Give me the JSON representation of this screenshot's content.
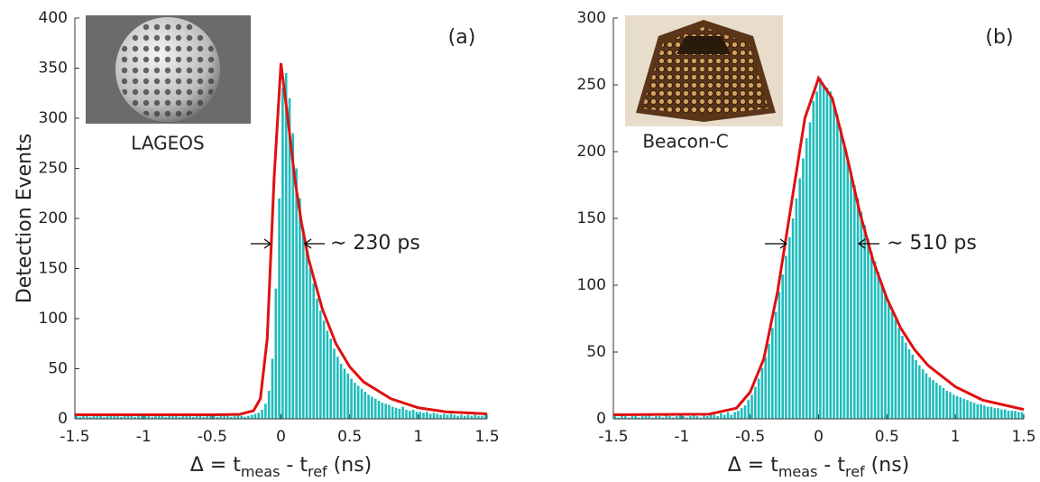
{
  "chart_data": [
    {
      "type": "histogram",
      "tag": "(a)",
      "image_caption": "LAGEOS",
      "annotation": "∼ 230 ps",
      "ylabel": "Detection Events",
      "xlabel": [
        "Δ = t",
        "meas",
        " - t",
        "ref",
        " (ns)"
      ],
      "color": "#1fbcbc",
      "bins": [
        -1.5,
        -1.475,
        -1.45,
        -1.425,
        -1.4,
        -1.375,
        -1.35,
        -1.325,
        -1.3,
        -1.275,
        -1.25,
        -1.225,
        -1.2,
        -1.175,
        -1.15,
        -1.125,
        -1.1,
        -1.075,
        -1.05,
        -1.025,
        -1,
        -0.975,
        -0.95,
        -0.925,
        -0.9,
        -0.875,
        -0.85,
        -0.825,
        -0.8,
        -0.775,
        -0.75,
        -0.725,
        -0.7,
        -0.675,
        -0.65,
        -0.625,
        -0.6,
        -0.575,
        -0.55,
        -0.525,
        -0.5,
        -0.475,
        -0.45,
        -0.425,
        -0.4,
        -0.375,
        -0.35,
        -0.325,
        -0.3,
        -0.275,
        -0.25,
        -0.225,
        -0.2,
        -0.175,
        -0.15,
        -0.125,
        -0.1,
        -0.075,
        -0.05,
        -0.025,
        0,
        0.025,
        0.05,
        0.075,
        0.1,
        0.125,
        0.15,
        0.175,
        0.2,
        0.225,
        0.25,
        0.275,
        0.3,
        0.325,
        0.35,
        0.375,
        0.4,
        0.425,
        0.45,
        0.475,
        0.5,
        0.525,
        0.55,
        0.575,
        0.6,
        0.625,
        0.65,
        0.675,
        0.7,
        0.725,
        0.75,
        0.775,
        0.8,
        0.825,
        0.85,
        0.875,
        0.9,
        0.925,
        0.95,
        0.975,
        1,
        1.025,
        1.05,
        1.075,
        1.1,
        1.125,
        1.15,
        1.175,
        1.2,
        1.225,
        1.25,
        1.275,
        1.3,
        1.325,
        1.35,
        1.375,
        1.4,
        1.425,
        1.45,
        1.475,
        1.5
      ],
      "values": [
        3,
        2,
        4,
        3,
        2,
        5,
        3,
        4,
        2,
        3,
        4,
        3,
        5,
        2,
        3,
        4,
        3,
        2,
        4,
        3,
        3,
        4,
        2,
        3,
        5,
        3,
        2,
        4,
        3,
        3,
        2,
        3,
        4,
        3,
        2,
        3,
        4,
        2,
        3,
        3,
        3,
        2,
        4,
        3,
        3,
        2,
        3,
        4,
        3,
        2,
        3,
        4,
        5,
        6,
        9,
        15,
        28,
        60,
        130,
        220,
        330,
        345,
        320,
        285,
        250,
        220,
        190,
        170,
        150,
        135,
        120,
        108,
        98,
        88,
        80,
        70,
        62,
        55,
        50,
        45,
        40,
        36,
        33,
        30,
        27,
        24,
        22,
        20,
        18,
        16,
        15,
        14,
        12,
        11,
        10,
        12,
        9,
        8,
        9,
        7,
        7,
        6,
        7,
        5,
        6,
        5,
        4,
        5,
        4,
        5,
        4,
        3,
        4,
        3,
        4,
        3,
        4,
        3,
        3,
        4
      ],
      "fit": {
        "type": "line",
        "color": "#e01010",
        "x": [
          -1.5,
          -0.5,
          -0.3,
          -0.2,
          -0.15,
          -0.1,
          -0.05,
          0,
          0.05,
          0.1,
          0.15,
          0.2,
          0.3,
          0.4,
          0.5,
          0.6,
          0.8,
          1,
          1.2,
          1.5
        ],
        "values": [
          4,
          4,
          4.5,
          8,
          20,
          80,
          240,
          355,
          300,
          240,
          195,
          160,
          110,
          75,
          52,
          37,
          20,
          11,
          7,
          5
        ]
      },
      "xlim": [
        -1.5,
        1.5
      ],
      "xticks": [
        -1.5,
        -1,
        -0.5,
        0,
        0.5,
        1,
        1.5
      ],
      "ylim": [
        0,
        400
      ],
      "yticks": [
        0,
        50,
        100,
        150,
        200,
        250,
        300,
        350,
        400
      ]
    },
    {
      "type": "histogram",
      "tag": "(b)",
      "image_caption": "Beacon-C",
      "annotation": "∼ 510 ps",
      "xlabel": [
        "Δ = t",
        "meas",
        " - t",
        "ref",
        " (ns)"
      ],
      "color": "#1fbcbc",
      "bins": [
        -1.5,
        -1.475,
        -1.45,
        -1.425,
        -1.4,
        -1.375,
        -1.35,
        -1.325,
        -1.3,
        -1.275,
        -1.25,
        -1.225,
        -1.2,
        -1.175,
        -1.15,
        -1.125,
        -1.1,
        -1.075,
        -1.05,
        -1.025,
        -1,
        -0.975,
        -0.95,
        -0.925,
        -0.9,
        -0.875,
        -0.85,
        -0.825,
        -0.8,
        -0.775,
        -0.75,
        -0.725,
        -0.7,
        -0.675,
        -0.65,
        -0.625,
        -0.6,
        -0.575,
        -0.55,
        -0.525,
        -0.5,
        -0.475,
        -0.45,
        -0.425,
        -0.4,
        -0.375,
        -0.35,
        -0.325,
        -0.3,
        -0.275,
        -0.25,
        -0.225,
        -0.2,
        -0.175,
        -0.15,
        -0.125,
        -0.1,
        -0.075,
        -0.05,
        -0.025,
        0,
        0.025,
        0.05,
        0.075,
        0.1,
        0.125,
        0.15,
        0.175,
        0.2,
        0.225,
        0.25,
        0.275,
        0.3,
        0.325,
        0.35,
        0.375,
        0.4,
        0.425,
        0.45,
        0.475,
        0.5,
        0.525,
        0.55,
        0.575,
        0.6,
        0.625,
        0.65,
        0.675,
        0.7,
        0.725,
        0.75,
        0.775,
        0.8,
        0.825,
        0.85,
        0.875,
        0.9,
        0.925,
        0.95,
        0.975,
        1,
        1.025,
        1.05,
        1.075,
        1.1,
        1.125,
        1.15,
        1.175,
        1.2,
        1.225,
        1.25,
        1.275,
        1.3,
        1.325,
        1.35,
        1.375,
        1.4,
        1.425,
        1.45,
        1.475,
        1.5
      ],
      "values": [
        2,
        1,
        3,
        2,
        1,
        2,
        3,
        1,
        2,
        2,
        3,
        1,
        2,
        2,
        1,
        3,
        2,
        1,
        2,
        3,
        2,
        1,
        2,
        3,
        2,
        1,
        3,
        2,
        4,
        3,
        2,
        4,
        3,
        5,
        3,
        5,
        6,
        8,
        10,
        14,
        18,
        24,
        30,
        38,
        46,
        56,
        68,
        80,
        95,
        108,
        122,
        136,
        150,
        165,
        180,
        195,
        210,
        222,
        238,
        245,
        255,
        250,
        248,
        245,
        235,
        228,
        218,
        205,
        195,
        185,
        175,
        165,
        155,
        145,
        135,
        125,
        118,
        110,
        100,
        94,
        88,
        80,
        74,
        68,
        62,
        57,
        52,
        48,
        44,
        40,
        37,
        34,
        31,
        29,
        27,
        25,
        23,
        21,
        20,
        18,
        17,
        16,
        15,
        14,
        13,
        12,
        11,
        11,
        10,
        9,
        9,
        8,
        8,
        7,
        7,
        6,
        6,
        6,
        5,
        5
      ],
      "fit": {
        "type": "line",
        "color": "#e01010",
        "x": [
          -1.5,
          -0.8,
          -0.6,
          -0.5,
          -0.4,
          -0.3,
          -0.2,
          -0.1,
          0,
          0.1,
          0.2,
          0.3,
          0.4,
          0.5,
          0.6,
          0.7,
          0.8,
          1,
          1.2,
          1.5
        ],
        "values": [
          3,
          3.5,
          8,
          20,
          45,
          95,
          160,
          225,
          255,
          240,
          200,
          155,
          118,
          90,
          68,
          52,
          40,
          24,
          14,
          7
        ]
      },
      "xlim": [
        -1.5,
        1.5
      ],
      "xticks": [
        -1.5,
        -1,
        -0.5,
        0,
        0.5,
        1,
        1.5
      ],
      "ylim": [
        0,
        300
      ],
      "yticks": [
        0,
        50,
        100,
        150,
        200,
        250,
        300
      ]
    }
  ]
}
